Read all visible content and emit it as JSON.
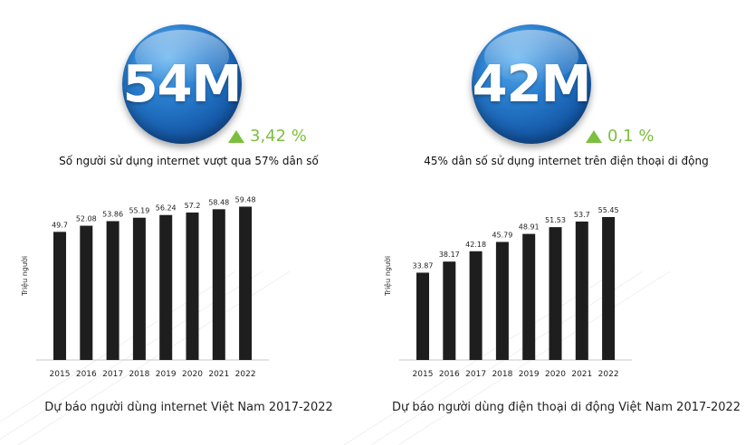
{
  "panels": [
    {
      "stat_value": "54M",
      "growth": "3,42 %",
      "caption": "Số người sử dụng internet vượt qua 57% dân số"
    },
    {
      "stat_value": "42M",
      "growth": "0,1 %",
      "caption": "45% dân số sử dụng internet trên điện thoại di động"
    }
  ],
  "colors": {
    "bar": "#1e1e1e",
    "accent_green": "#7cbf3e",
    "circle_blue": "#1a66b8"
  },
  "chart_data": [
    {
      "type": "bar",
      "title": "Dự báo người dùng internet Việt Nam 2017-2022",
      "ylabel": "Triệu người",
      "xlabel": "",
      "categories": [
        "2015",
        "2016",
        "2017",
        "2018",
        "2019",
        "2020",
        "2021",
        "2022"
      ],
      "values": [
        49.7,
        52.08,
        53.86,
        55.19,
        56.24,
        57.2,
        58.48,
        59.48
      ],
      "value_labels": [
        "49.7",
        "52.08",
        "53.86",
        "55.19",
        "56.24",
        "57.2",
        "58.48",
        "59.48"
      ]
    },
    {
      "type": "bar",
      "title": "Dự báo người dùng điện thoại di động Việt Nam 2017-2022",
      "ylabel": "Triệu người",
      "xlabel": "",
      "categories": [
        "2015",
        "2016",
        "2017",
        "2018",
        "2019",
        "2020",
        "2021",
        "2022"
      ],
      "values": [
        33.87,
        38.17,
        42.18,
        45.79,
        48.91,
        51.53,
        53.7,
        55.45
      ],
      "value_labels": [
        "33.87",
        "38.17",
        "42.18",
        "45.79",
        "48.91",
        "51.53",
        "53.7",
        "55.45"
      ]
    }
  ]
}
